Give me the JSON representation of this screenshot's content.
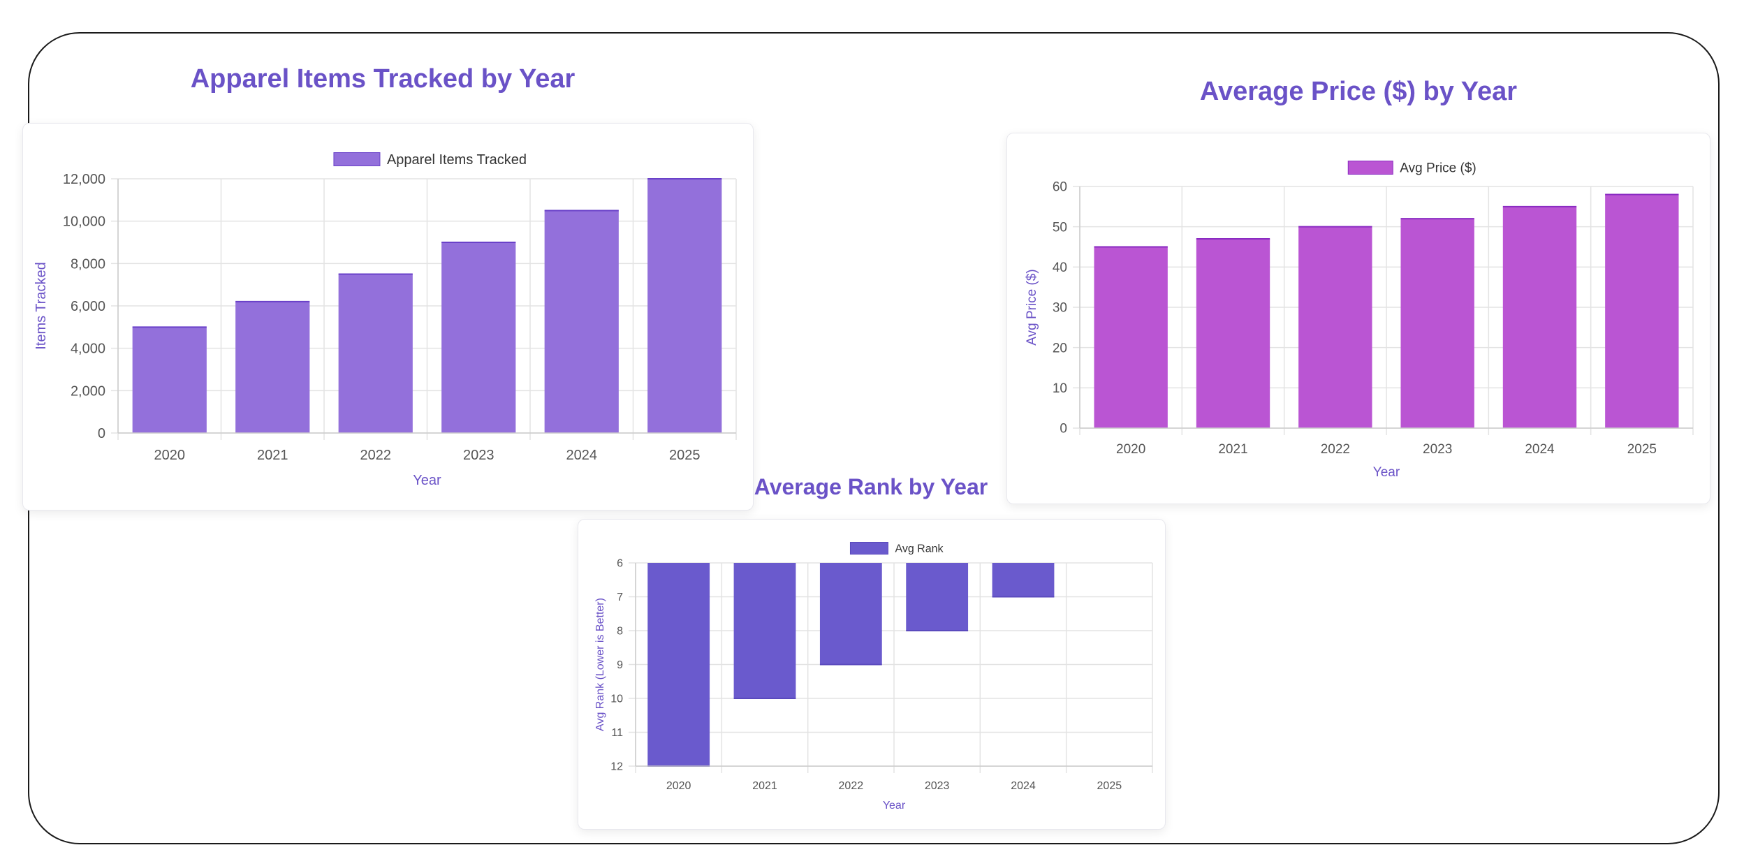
{
  "chart_data": [
    {
      "type": "bar",
      "title": "Apparel Items Tracked by Year",
      "legend": "Apparel Items Tracked",
      "xlabel": "Year",
      "ylabel": "Items Tracked",
      "categories": [
        "2020",
        "2021",
        "2022",
        "2023",
        "2024",
        "2025"
      ],
      "values": [
        5000,
        6200,
        7500,
        9000,
        10500,
        12000
      ],
      "ylim": [
        0,
        12000
      ],
      "yticks": [
        0,
        2000,
        4000,
        6000,
        8000,
        10000,
        12000
      ],
      "ytick_labels": [
        "0",
        "2,000",
        "4,000",
        "6,000",
        "8,000",
        "10,000",
        "12,000"
      ],
      "reverse": false,
      "color": "#9370db",
      "border_color": "#6a41c9",
      "grid": true
    },
    {
      "type": "bar",
      "title": "Average Price ($) by Year",
      "legend": "Avg Price ($)",
      "xlabel": "Year",
      "ylabel": "Avg Price ($)",
      "categories": [
        "2020",
        "2021",
        "2022",
        "2023",
        "2024",
        "2025"
      ],
      "values": [
        45,
        47,
        50,
        52,
        55,
        58
      ],
      "ylim": [
        0,
        60
      ],
      "yticks": [
        0,
        10,
        20,
        30,
        40,
        50,
        60
      ],
      "ytick_labels": [
        "0",
        "10",
        "20",
        "30",
        "40",
        "50",
        "60"
      ],
      "reverse": false,
      "color": "#ba55d3",
      "border_color": "#8a2bc2",
      "grid": true
    },
    {
      "type": "bar",
      "title": "Average Rank by Year",
      "legend": "Avg Rank",
      "xlabel": "Year",
      "ylabel": "Avg Rank (Lower is Better)",
      "categories": [
        "2020",
        "2021",
        "2022",
        "2023",
        "2024",
        "2025"
      ],
      "values": [
        12,
        10,
        9,
        8,
        7,
        6
      ],
      "ylim": [
        6,
        12
      ],
      "yticks": [
        6,
        7,
        8,
        9,
        10,
        11,
        12
      ],
      "ytick_labels": [
        "6",
        "7",
        "8",
        "9",
        "10",
        "11",
        "12"
      ],
      "reverse": true,
      "color": "#6a5acd",
      "border_color": "#5a4abd",
      "grid": true
    }
  ]
}
